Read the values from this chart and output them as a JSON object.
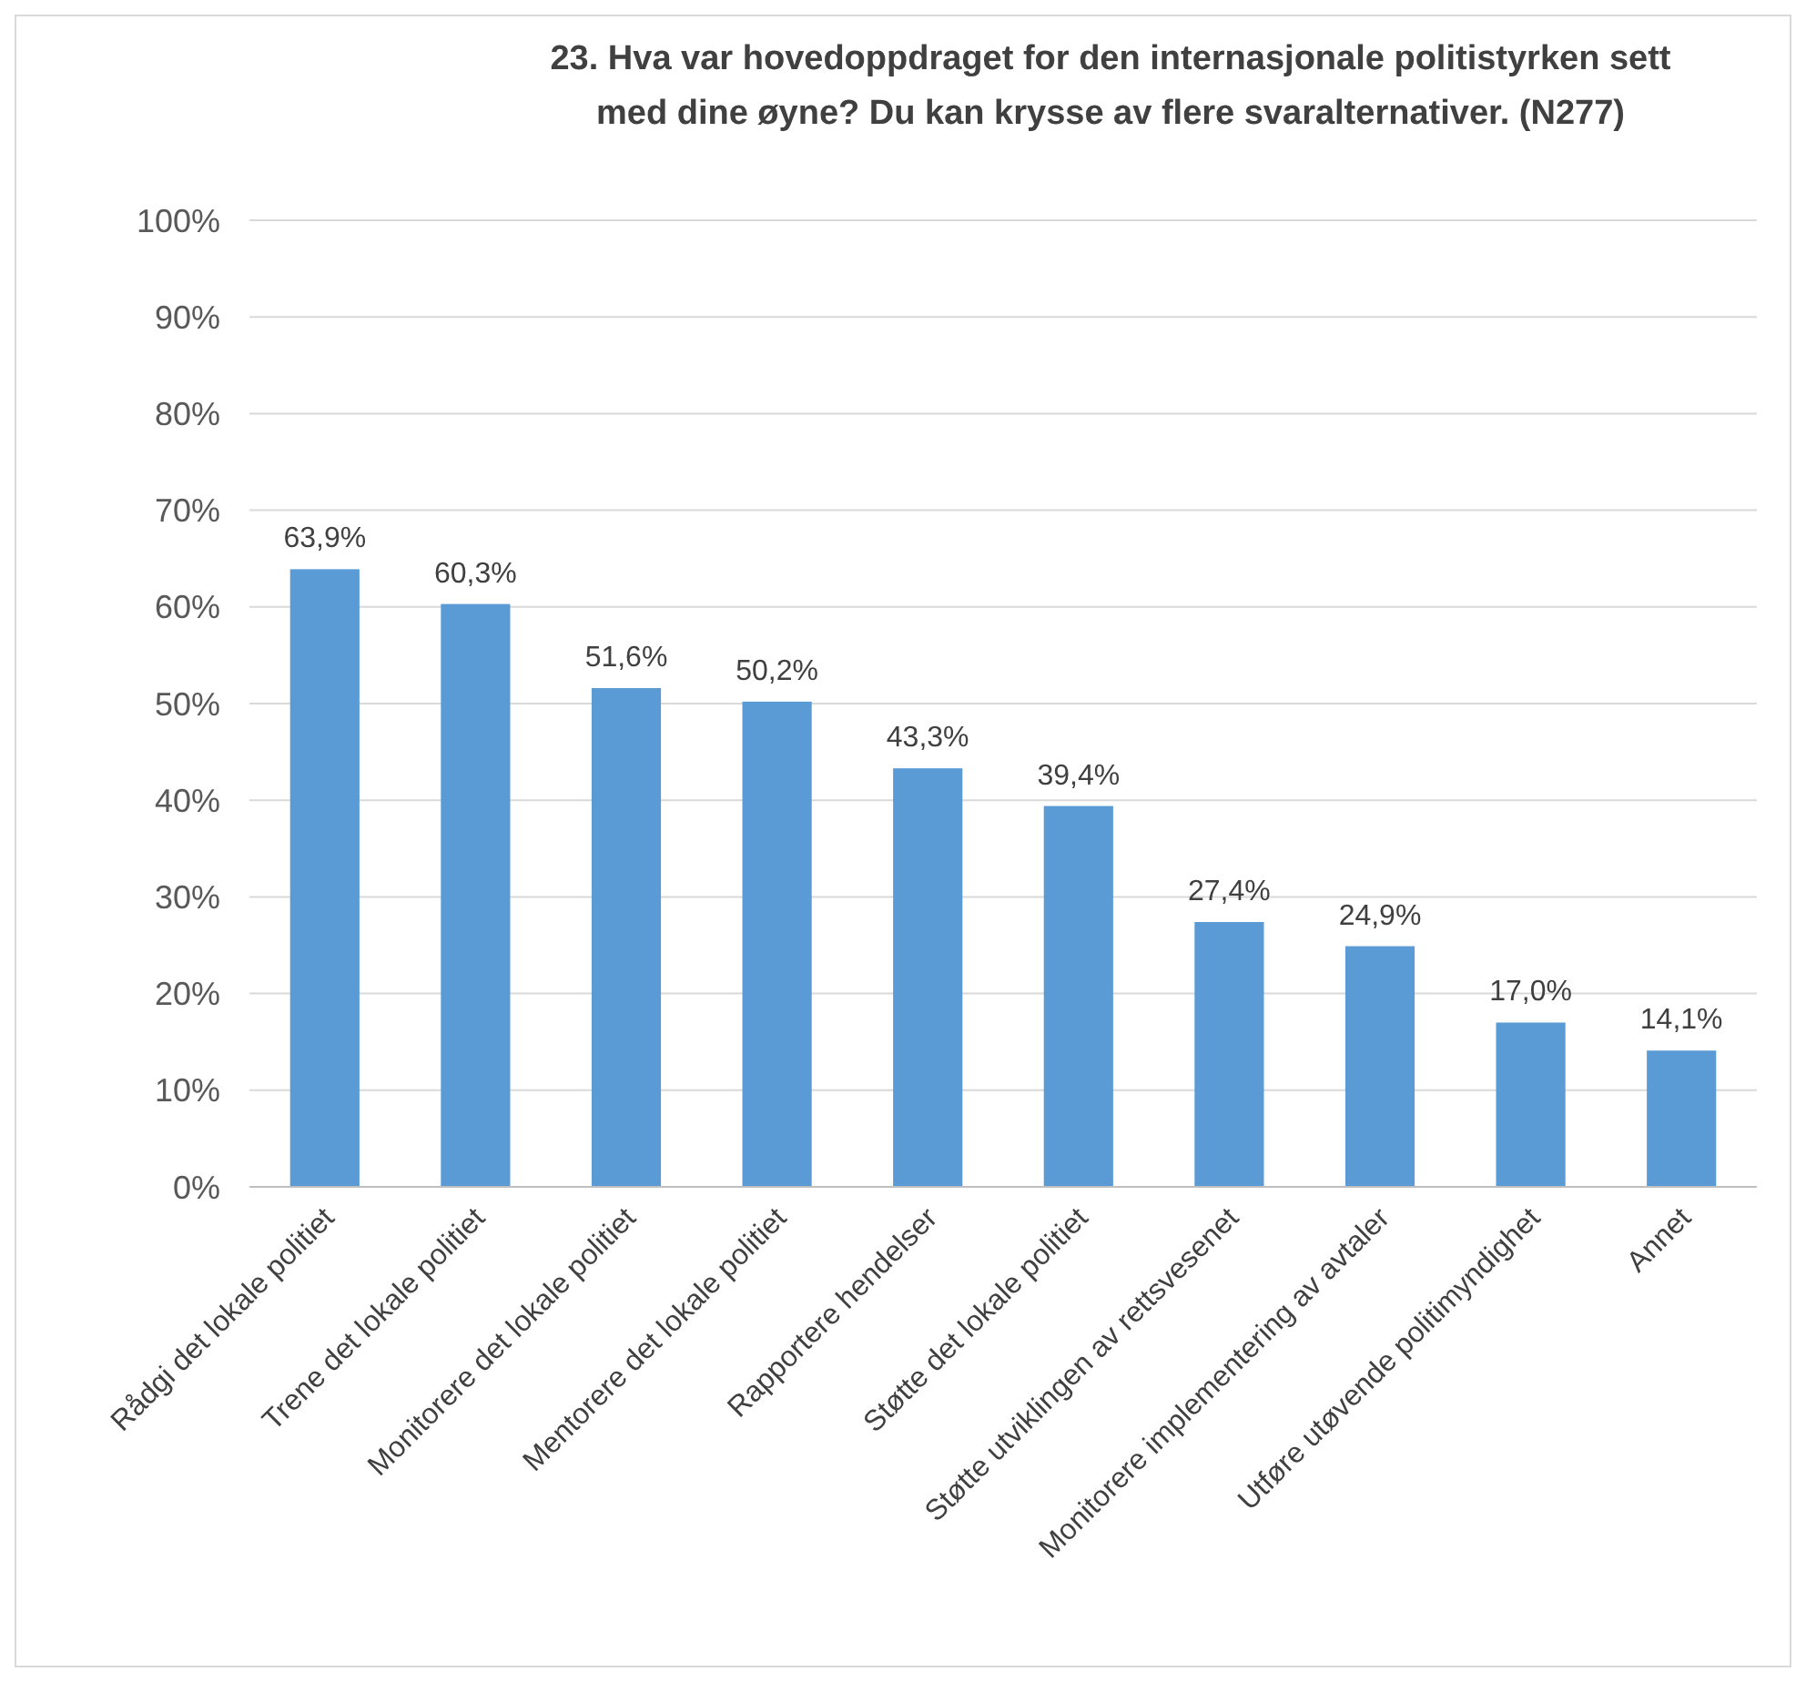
{
  "chart_data": {
    "type": "bar",
    "title": "23. Hva var hovedoppdraget for den internasjonale politistyrken sett med dine øyne? Du kan krysse av flere svaralternativer. (N277)",
    "categories": [
      "Rådgi det lokale politiet",
      "Trene det lokale politiet",
      "Monitorere det lokale politiet",
      "Mentorere det lokale politiet",
      "Rapportere hendelser",
      "Støtte det lokale politiet",
      "Støtte utviklingen av rettsvesenet",
      "Monitorere implementering av avtaler",
      "Utføre utøvende politimyndighet",
      "Annet"
    ],
    "values": [
      63.9,
      60.3,
      51.6,
      50.2,
      43.3,
      39.4,
      27.4,
      24.9,
      17.0,
      14.1
    ],
    "value_labels": [
      "63,9%",
      "60,3%",
      "51,6%",
      "50,2%",
      "43,3%",
      "39,4%",
      "27,4%",
      "24,9%",
      "17,0%",
      "14,1%"
    ],
    "color": "#5b9bd5",
    "ylim": [
      0,
      100
    ],
    "yticks": [
      {
        "value": 0,
        "label": "0%"
      },
      {
        "value": 10,
        "label": "10%"
      },
      {
        "value": 20,
        "label": "20%"
      },
      {
        "value": 30,
        "label": "30%"
      },
      {
        "value": 40,
        "label": "40%"
      },
      {
        "value": 50,
        "label": "50%"
      },
      {
        "value": 60,
        "label": "60%"
      },
      {
        "value": 70,
        "label": "70%"
      },
      {
        "value": 80,
        "label": "80%"
      },
      {
        "value": 90,
        "label": "90%"
      },
      {
        "value": 100,
        "label": "100%"
      }
    ],
    "grid": "y"
  }
}
